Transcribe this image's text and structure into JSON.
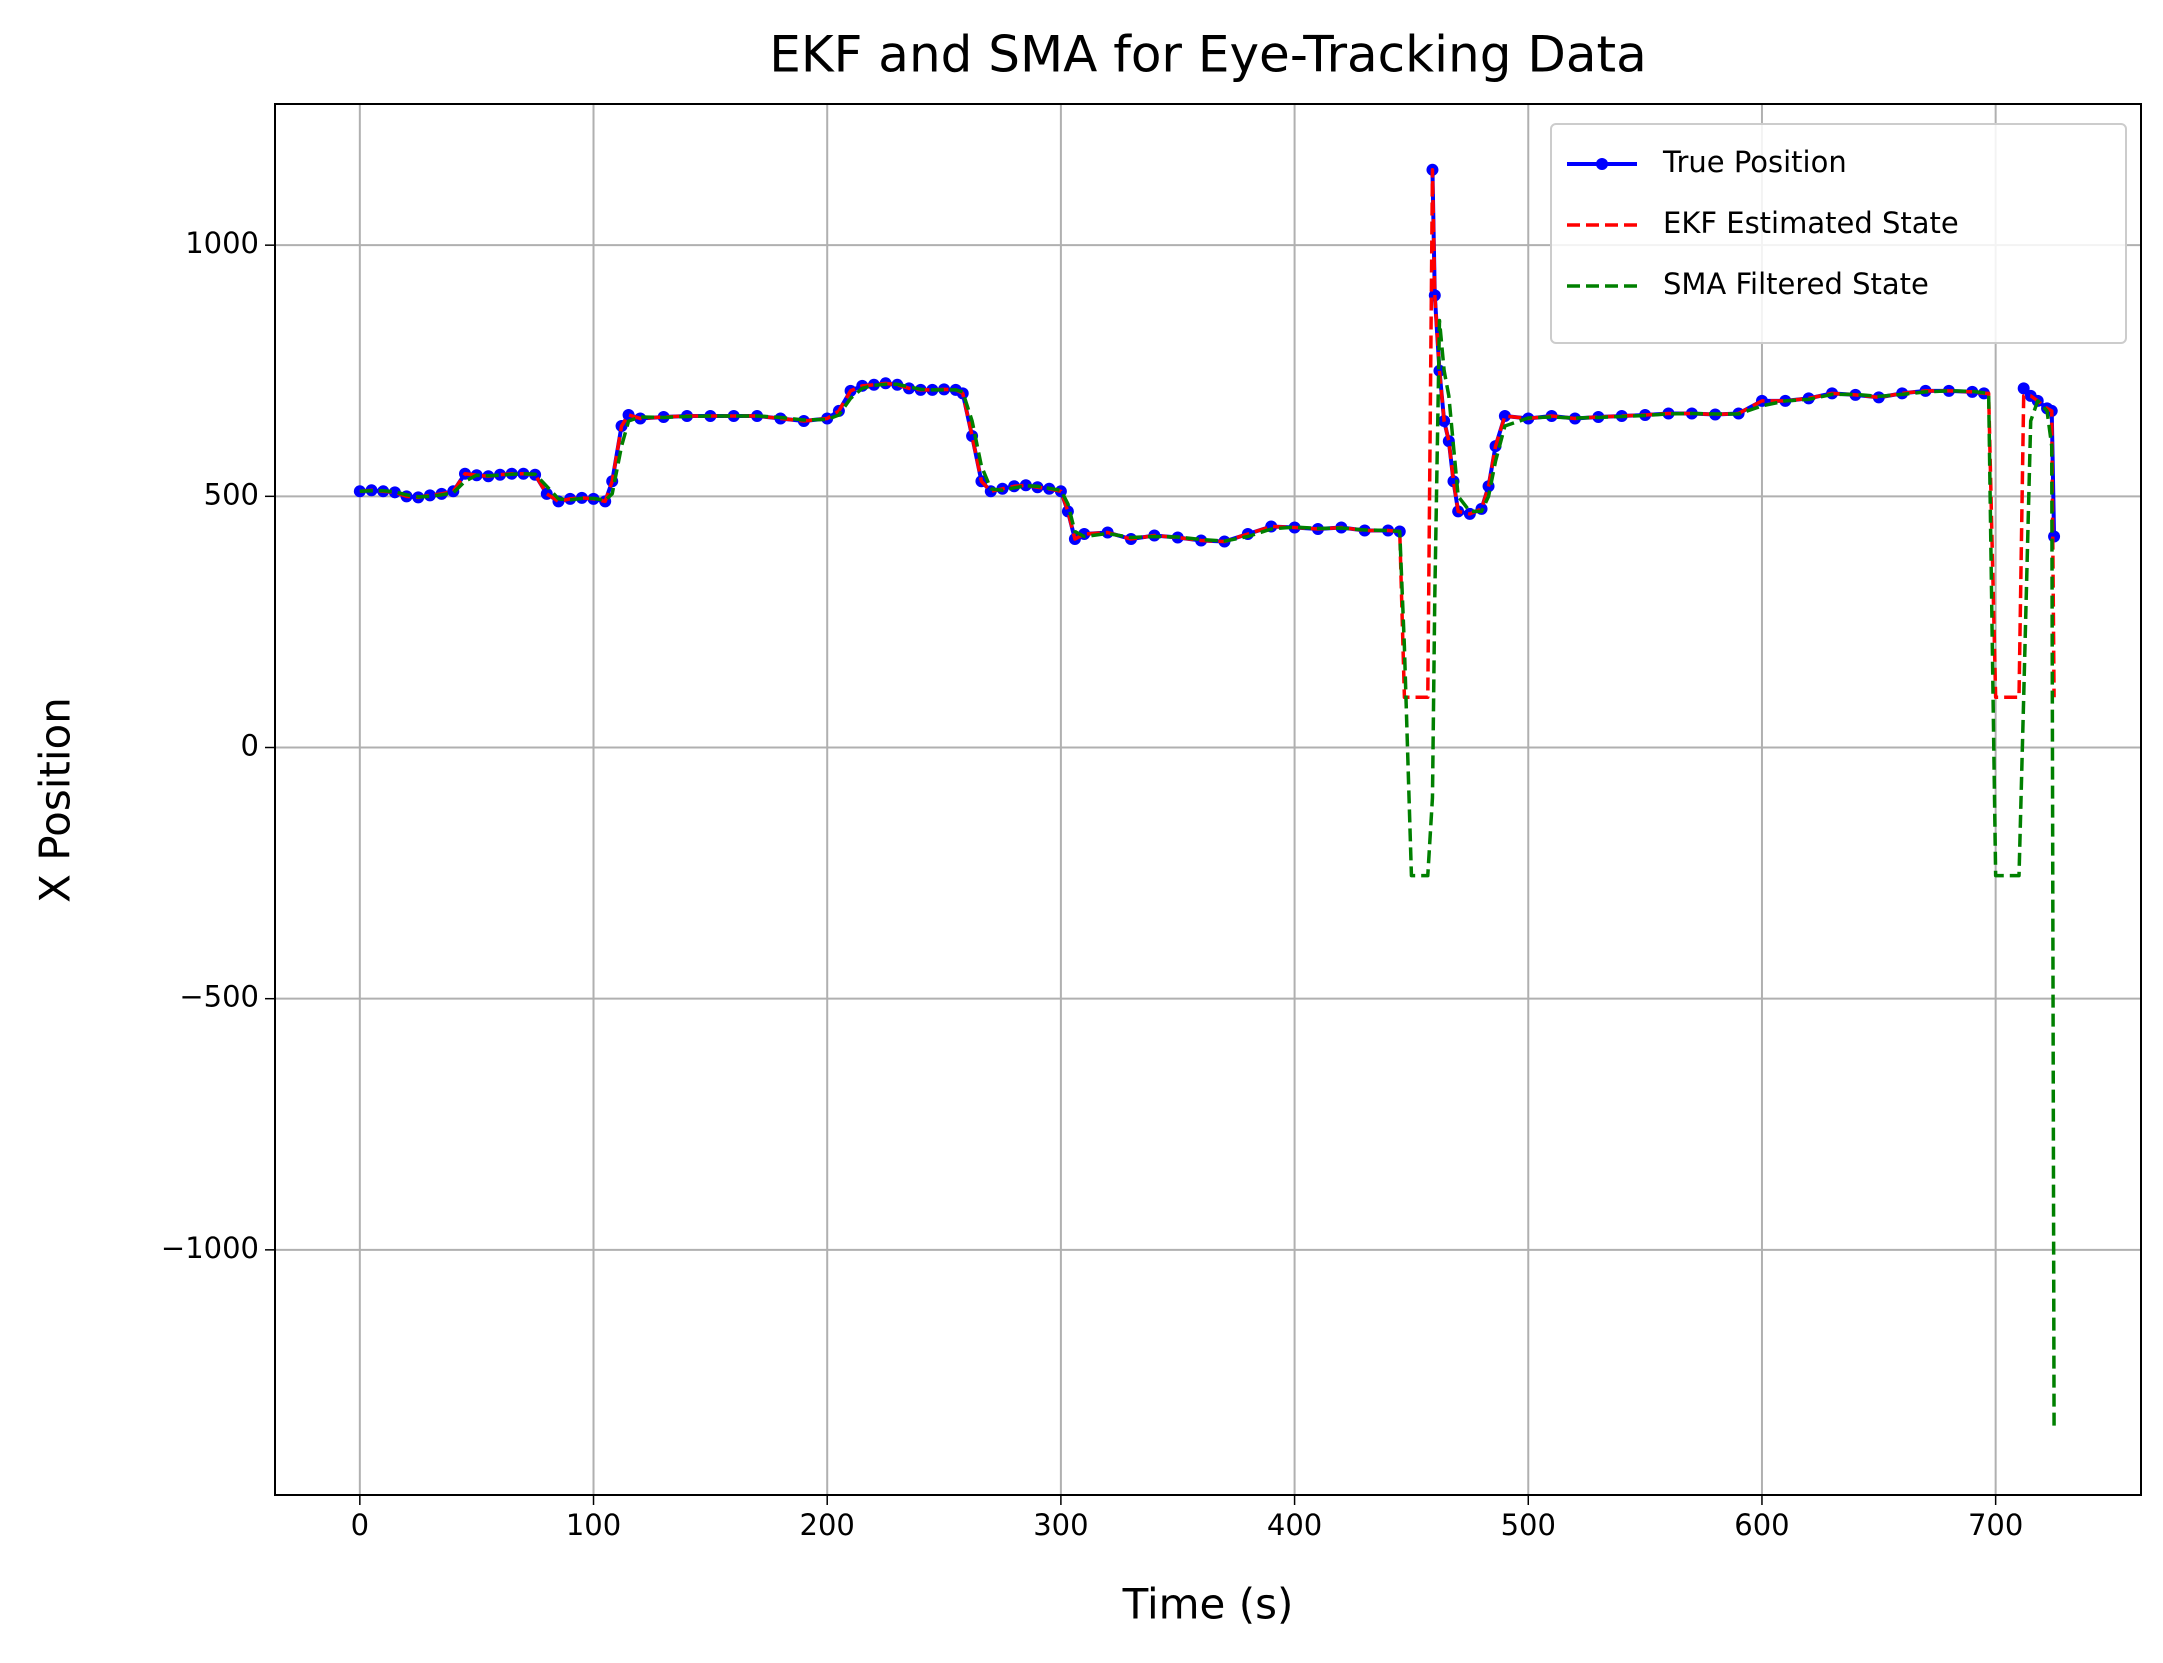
{
  "chart_data": {
    "type": "line",
    "title": "EKF and SMA for Eye-Tracking Data",
    "x_label": "Time (s)",
    "y_label": "X Position",
    "xlim": [
      -36.3,
      762.2
    ],
    "ylim": [
      -1488,
      1281
    ],
    "xticks": [
      0,
      100,
      200,
      300,
      400,
      500,
      600,
      700
    ],
    "yticks": [
      {
        "value": -1000,
        "label": "−1000"
      },
      {
        "value": -500,
        "label": "−500"
      },
      0,
      500,
      1000
    ],
    "grid": true,
    "legend": "upper right",
    "x": [
      0,
      5,
      10,
      15,
      20,
      25,
      30,
      35,
      40,
      45,
      50,
      55,
      60,
      65,
      70,
      75,
      80,
      85,
      90,
      95,
      100,
      105,
      108,
      112,
      115,
      120,
      130,
      140,
      150,
      160,
      170,
      180,
      190,
      200,
      205,
      210,
      215,
      220,
      225,
      230,
      235,
      240,
      245,
      250,
      255,
      258,
      262,
      266,
      270,
      275,
      280,
      285,
      290,
      295,
      300,
      303,
      306,
      310,
      320,
      330,
      340,
      350,
      360,
      370,
      380,
      390,
      400,
      410,
      420,
      430,
      440,
      445,
      447,
      450,
      455,
      457,
      459,
      460,
      462,
      464,
      466,
      468,
      470,
      475,
      480,
      483,
      486,
      490,
      500,
      510,
      520,
      530,
      540,
      550,
      560,
      570,
      580,
      590,
      600,
      610,
      620,
      630,
      640,
      650,
      660,
      670,
      680,
      690,
      695,
      697,
      700,
      705,
      710,
      712,
      715,
      718,
      722,
      724,
      725
    ],
    "series": [
      {
        "name": "True Position",
        "color": "#0000ff",
        "linestyle": "solid",
        "marker": "o",
        "values": [
          510,
          512,
          510,
          508,
          500,
          498,
          502,
          505,
          510,
          545,
          542,
          540,
          543,
          545,
          545,
          543,
          505,
          490,
          495,
          497,
          495,
          490,
          530,
          640,
          662,
          655,
          658,
          660,
          660,
          660,
          660,
          655,
          650,
          655,
          670,
          710,
          720,
          722,
          725,
          722,
          715,
          712,
          712,
          713,
          712,
          705,
          620,
          530,
          510,
          515,
          520,
          522,
          518,
          515,
          510,
          470,
          415,
          425,
          428,
          415,
          422,
          418,
          412,
          410,
          425,
          440,
          438,
          435,
          438,
          432,
          432,
          430,
          null,
          null,
          null,
          null,
          1150,
          900,
          750,
          650,
          610,
          530,
          470,
          465,
          475,
          520,
          600,
          660,
          655,
          660,
          655,
          658,
          660,
          662,
          665,
          665,
          663,
          665,
          690,
          690,
          695,
          705,
          702,
          697,
          705,
          710,
          710,
          708,
          705,
          null,
          null,
          null,
          null,
          715,
          700,
          690,
          675,
          670,
          420
        ]
      },
      {
        "name": "EKF Estimated State",
        "color": "#ff0000",
        "linestyle": "dashed",
        "values": [
          510,
          512,
          510,
          508,
          500,
          498,
          502,
          505,
          510,
          545,
          542,
          540,
          543,
          545,
          545,
          543,
          505,
          490,
          495,
          497,
          495,
          490,
          530,
          640,
          662,
          655,
          658,
          660,
          660,
          660,
          660,
          655,
          650,
          655,
          670,
          710,
          720,
          722,
          725,
          722,
          715,
          712,
          712,
          713,
          712,
          705,
          620,
          530,
          510,
          515,
          520,
          522,
          518,
          515,
          510,
          470,
          415,
          425,
          428,
          415,
          422,
          418,
          412,
          410,
          425,
          440,
          438,
          435,
          438,
          432,
          432,
          430,
          100,
          100,
          100,
          100,
          1150,
          900,
          750,
          650,
          610,
          530,
          470,
          465,
          475,
          520,
          600,
          660,
          655,
          660,
          655,
          658,
          660,
          662,
          665,
          665,
          663,
          665,
          690,
          690,
          695,
          705,
          702,
          697,
          705,
          710,
          710,
          708,
          705,
          705,
          100,
          100,
          100,
          700,
          700,
          690,
          675,
          670,
          100
        ]
      },
      {
        "name": "SMA Filtered State",
        "color": "#008000",
        "linestyle": "dashed",
        "values": [
          510,
          511,
          511,
          509,
          503,
          499,
          500,
          503,
          507,
          530,
          542,
          541,
          542,
          544,
          545,
          544,
          520,
          495,
          493,
          496,
          496,
          492,
          505,
          600,
          650,
          658,
          657,
          659,
          660,
          660,
          660,
          657,
          652,
          653,
          662,
          695,
          715,
          721,
          723,
          723,
          718,
          713,
          712,
          712,
          712,
          708,
          650,
          560,
          515,
          512,
          517,
          521,
          520,
          516,
          512,
          485,
          430,
          420,
          426,
          418,
          420,
          419,
          414,
          411,
          420,
          435,
          439,
          436,
          437,
          433,
          432,
          430,
          200,
          -255,
          -255,
          -255,
          -100,
          300,
          850,
          750,
          700,
          600,
          500,
          470,
          470,
          500,
          570,
          640,
          656,
          658,
          656,
          657,
          659,
          661,
          664,
          665,
          664,
          664,
          680,
          690,
          693,
          703,
          703,
          699,
          703,
          708,
          710,
          709,
          706,
          705,
          -255,
          -255,
          -255,
          100,
          650,
          690,
          670,
          600,
          -1350
        ]
      }
    ]
  }
}
